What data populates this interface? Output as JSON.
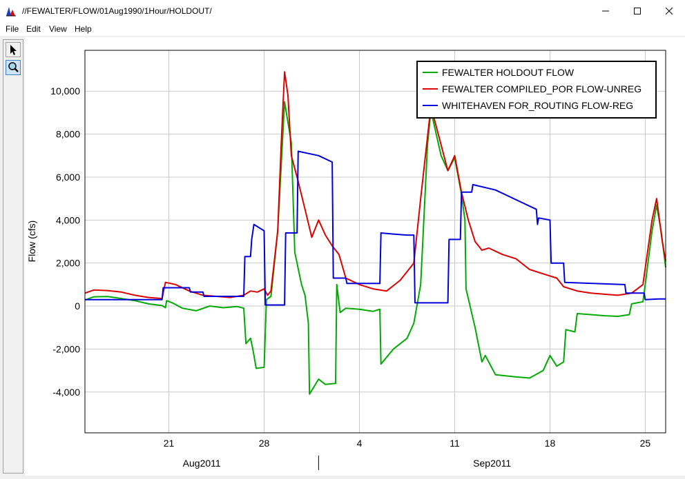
{
  "window": {
    "title": "//FEWALTER/FLOW/01Aug1990/1Hour/HOLDOUT/",
    "icon": "chart-app-icon",
    "controls": [
      "minimize-icon",
      "maximize-icon",
      "close-icon"
    ]
  },
  "menu": {
    "file": "File",
    "edit": "Edit",
    "view": "View",
    "help": "Help"
  },
  "toolbar": {
    "tools": [
      "pointer-icon",
      "zoom-icon"
    ],
    "active": "zoom-icon"
  },
  "chart_data": {
    "type": "line",
    "title": "",
    "ylabel": "Flow (cfs)",
    "xlabel": "",
    "ylim": [
      -5900,
      11900
    ],
    "xlim": [
      "2011-08-14T20:00",
      "2011-09-26T12:00"
    ],
    "grid": true,
    "legend_position": "top-right",
    "yticks": [
      -4000,
      -2000,
      0,
      2000,
      4000,
      6000,
      8000,
      10000
    ],
    "yticklabels": [
      "-4,000",
      "-2,000",
      "0",
      "2,000",
      "4,000",
      "6,000",
      "8,000",
      "10,000"
    ],
    "xticks": [
      "2011-08-21",
      "2011-08-28",
      "2011-09-04",
      "2011-09-11",
      "2011-09-18",
      "2011-09-25"
    ],
    "xticklabels": [
      "21",
      "28",
      "4",
      "11",
      "18",
      "25"
    ],
    "period_labels": [
      "Aug2011",
      "Sep2011"
    ],
    "period_divider": "2011-09-01",
    "series": [
      {
        "name": "FEWALTER HOLDOUT FLOW",
        "color": "#00aa00",
        "points": [
          [
            "2011-08-14T20:00",
            280
          ],
          [
            "2011-08-15T12:00",
            430
          ],
          [
            "2011-08-16T12:00",
            440
          ],
          [
            "2011-08-17T12:00",
            350
          ],
          [
            "2011-08-18T12:00",
            250
          ],
          [
            "2011-08-19T12:00",
            100
          ],
          [
            "2011-08-20T12:00",
            20
          ],
          [
            "2011-08-20T18:00",
            -80
          ],
          [
            "2011-08-20T20:00",
            250
          ],
          [
            "2011-08-21T06:00",
            150
          ],
          [
            "2011-08-22T00:00",
            -100
          ],
          [
            "2011-08-23T00:00",
            -220
          ],
          [
            "2011-08-24T00:00",
            0
          ],
          [
            "2011-08-25T00:00",
            -80
          ],
          [
            "2011-08-26T00:00",
            -20
          ],
          [
            "2011-08-26T12:00",
            -100
          ],
          [
            "2011-08-26T16:00",
            -1750
          ],
          [
            "2011-08-27T00:00",
            -1500
          ],
          [
            "2011-08-27T04:00",
            -2000
          ],
          [
            "2011-08-27T10:00",
            -2900
          ],
          [
            "2011-08-28T00:00",
            -2850
          ],
          [
            "2011-08-28T04:00",
            300
          ],
          [
            "2011-08-28T12:00",
            450
          ],
          [
            "2011-08-29T00:00",
            3500
          ],
          [
            "2011-08-29T12:00",
            9500
          ],
          [
            "2011-08-30T00:00",
            7600
          ],
          [
            "2011-08-30T06:00",
            2500
          ],
          [
            "2011-08-30T18:00",
            1000
          ],
          [
            "2011-08-31T00:00",
            500
          ],
          [
            "2011-08-31T06:00",
            -800
          ],
          [
            "2011-08-31T08:00",
            -4100
          ],
          [
            "2011-09-01T00:00",
            -3400
          ],
          [
            "2011-09-01T12:00",
            -3650
          ],
          [
            "2011-09-02T06:00",
            -3600
          ],
          [
            "2011-09-02T08:00",
            1000
          ],
          [
            "2011-09-02T14:00",
            -300
          ],
          [
            "2011-09-03T00:00",
            -100
          ],
          [
            "2011-09-04T00:00",
            -150
          ],
          [
            "2011-09-05T00:00",
            -250
          ],
          [
            "2011-09-05T12:00",
            -150
          ],
          [
            "2011-09-05T14:00",
            -2700
          ],
          [
            "2011-09-06T12:00",
            -2000
          ],
          [
            "2011-09-07T12:00",
            -1500
          ],
          [
            "2011-09-08T00:00",
            -800
          ],
          [
            "2011-09-08T12:00",
            1000
          ],
          [
            "2011-09-09T00:00",
            7500
          ],
          [
            "2011-09-09T06:00",
            9100
          ],
          [
            "2011-09-10T00:00",
            7000
          ],
          [
            "2011-09-10T12:00",
            6300
          ],
          [
            "2011-09-11T00:00",
            6900
          ],
          [
            "2011-09-11T12:00",
            5200
          ],
          [
            "2011-09-11T18:00",
            4000
          ],
          [
            "2011-09-11T20:00",
            800
          ],
          [
            "2011-09-12T12:00",
            -1000
          ],
          [
            "2011-09-13T00:00",
            -2600
          ],
          [
            "2011-09-13T06:00",
            -2300
          ],
          [
            "2011-09-14T00:00",
            -3200
          ],
          [
            "2011-09-15T12:00",
            -3300
          ],
          [
            "2011-09-16T12:00",
            -3350
          ],
          [
            "2011-09-17T12:00",
            -3000
          ],
          [
            "2011-09-18T00:00",
            -2300
          ],
          [
            "2011-09-18T12:00",
            -2800
          ],
          [
            "2011-09-19T00:00",
            -2600
          ],
          [
            "2011-09-19T04:00",
            -1100
          ],
          [
            "2011-09-19T20:00",
            -1200
          ],
          [
            "2011-09-20T00:00",
            -350
          ],
          [
            "2011-09-21T00:00",
            -400
          ],
          [
            "2011-09-22T00:00",
            -450
          ],
          [
            "2011-09-23T00:00",
            -480
          ],
          [
            "2011-09-23T20:00",
            -400
          ],
          [
            "2011-09-24T00:00",
            100
          ],
          [
            "2011-09-24T20:00",
            200
          ],
          [
            "2011-09-25T00:00",
            1000
          ],
          [
            "2011-09-25T12:00",
            3500
          ],
          [
            "2011-09-25T20:00",
            4700
          ],
          [
            "2011-09-26T04:00",
            3500
          ],
          [
            "2011-09-26T12:00",
            1800
          ]
        ]
      },
      {
        "name": "FEWALTER COMPILED_POR FLOW-UNREG",
        "color": "#dd0000",
        "points": [
          [
            "2011-08-14T20:00",
            600
          ],
          [
            "2011-08-15T12:00",
            750
          ],
          [
            "2011-08-16T12:00",
            720
          ],
          [
            "2011-08-17T12:00",
            650
          ],
          [
            "2011-08-18T12:00",
            500
          ],
          [
            "2011-08-19T12:00",
            400
          ],
          [
            "2011-08-20T12:00",
            350
          ],
          [
            "2011-08-20T18:00",
            1100
          ],
          [
            "2011-08-21T12:00",
            1000
          ],
          [
            "2011-08-22T12:00",
            700
          ],
          [
            "2011-08-23T12:00",
            500
          ],
          [
            "2011-08-24T12:00",
            450
          ],
          [
            "2011-08-25T12:00",
            400
          ],
          [
            "2011-08-26T12:00",
            500
          ],
          [
            "2011-08-27T00:00",
            700
          ],
          [
            "2011-08-27T12:00",
            650
          ],
          [
            "2011-08-28T00:00",
            800
          ],
          [
            "2011-08-28T06:00",
            500
          ],
          [
            "2011-08-28T12:00",
            700
          ],
          [
            "2011-08-29T00:00",
            3500
          ],
          [
            "2011-08-29T06:00",
            7500
          ],
          [
            "2011-08-29T12:00",
            10900
          ],
          [
            "2011-08-29T18:00",
            9800
          ],
          [
            "2011-08-30T00:00",
            7000
          ],
          [
            "2011-08-30T12:00",
            5800
          ],
          [
            "2011-08-31T00:00",
            4500
          ],
          [
            "2011-08-31T12:00",
            3200
          ],
          [
            "2011-09-01T00:00",
            4000
          ],
          [
            "2011-09-01T12:00",
            3300
          ],
          [
            "2011-09-02T00:00",
            2800
          ],
          [
            "2011-09-02T12:00",
            2400
          ],
          [
            "2011-09-03T00:00",
            1300
          ],
          [
            "2011-09-04T00:00",
            1000
          ],
          [
            "2011-09-05T00:00",
            800
          ],
          [
            "2011-09-06T00:00",
            700
          ],
          [
            "2011-09-07T00:00",
            1200
          ],
          [
            "2011-09-08T00:00",
            2000
          ],
          [
            "2011-09-08T12:00",
            5000
          ],
          [
            "2011-09-09T06:00",
            9300
          ],
          [
            "2011-09-10T00:00",
            7500
          ],
          [
            "2011-09-10T12:00",
            6300
          ],
          [
            "2011-09-11T00:00",
            7000
          ],
          [
            "2011-09-11T12:00",
            5300
          ],
          [
            "2011-09-12T00:00",
            4000
          ],
          [
            "2011-09-12T12:00",
            3000
          ],
          [
            "2011-09-13T00:00",
            2600
          ],
          [
            "2011-09-13T12:00",
            2700
          ],
          [
            "2011-09-14T12:00",
            2400
          ],
          [
            "2011-09-15T12:00",
            2200
          ],
          [
            "2011-09-16T12:00",
            1700
          ],
          [
            "2011-09-17T12:00",
            1500
          ],
          [
            "2011-09-18T12:00",
            1300
          ],
          [
            "2011-09-19T00:00",
            900
          ],
          [
            "2011-09-20T00:00",
            700
          ],
          [
            "2011-09-21T00:00",
            600
          ],
          [
            "2011-09-22T00:00",
            550
          ],
          [
            "2011-09-23T00:00",
            500
          ],
          [
            "2011-09-24T00:00",
            600
          ],
          [
            "2011-09-24T20:00",
            1000
          ],
          [
            "2011-09-25T12:00",
            4000
          ],
          [
            "2011-09-25T20:00",
            5000
          ],
          [
            "2011-09-26T06:00",
            3000
          ],
          [
            "2011-09-26T12:00",
            2100
          ]
        ]
      },
      {
        "name": "WHITEHAVEN FOR_ROUTING FLOW-REG",
        "color": "#0000dd",
        "points": [
          [
            "2011-08-14T20:00",
            300
          ],
          [
            "2011-08-20T12:00",
            300
          ],
          [
            "2011-08-20T14:00",
            850
          ],
          [
            "2011-08-22T12:00",
            850
          ],
          [
            "2011-08-22T14:00",
            650
          ],
          [
            "2011-08-23T12:00",
            650
          ],
          [
            "2011-08-23T14:00",
            450
          ],
          [
            "2011-08-26T12:00",
            450
          ],
          [
            "2011-08-26T14:00",
            2300
          ],
          [
            "2011-08-27T00:00",
            2300
          ],
          [
            "2011-08-27T02:00",
            3100
          ],
          [
            "2011-08-27T06:00",
            3800
          ],
          [
            "2011-08-28T00:00",
            3500
          ],
          [
            "2011-08-28T02:00",
            50
          ],
          [
            "2011-08-29T12:00",
            50
          ],
          [
            "2011-08-29T14:00",
            3400
          ],
          [
            "2011-08-30T10:00",
            3400
          ],
          [
            "2011-08-30T12:00",
            7200
          ],
          [
            "2011-09-01T00:00",
            7000
          ],
          [
            "2011-09-02T00:00",
            6700
          ],
          [
            "2011-09-02T02:00",
            1300
          ],
          [
            "2011-09-03T00:00",
            1300
          ],
          [
            "2011-09-03T02:00",
            1050
          ],
          [
            "2011-09-05T12:00",
            1050
          ],
          [
            "2011-09-05T14:00",
            3400
          ],
          [
            "2011-09-06T12:00",
            3350
          ],
          [
            "2011-09-07T12:00",
            3300
          ],
          [
            "2011-09-08T00:00",
            3300
          ],
          [
            "2011-09-08T02:00",
            150
          ],
          [
            "2011-09-10T12:00",
            150
          ],
          [
            "2011-09-10T14:00",
            3100
          ],
          [
            "2011-09-11T10:00",
            3100
          ],
          [
            "2011-09-11T12:00",
            5300
          ],
          [
            "2011-09-12T06:00",
            5300
          ],
          [
            "2011-09-12T08:00",
            5650
          ],
          [
            "2011-09-14T00:00",
            5400
          ],
          [
            "2011-09-16T00:00",
            4800
          ],
          [
            "2011-09-17T00:00",
            4500
          ],
          [
            "2011-09-17T02:00",
            3800
          ],
          [
            "2011-09-17T04:00",
            4100
          ],
          [
            "2011-09-18T00:00",
            4000
          ],
          [
            "2011-09-18T02:00",
            2000
          ],
          [
            "2011-09-19T00:00",
            2000
          ],
          [
            "2011-09-19T02:00",
            1100
          ],
          [
            "2011-09-23T12:00",
            1000
          ],
          [
            "2011-09-23T14:00",
            600
          ],
          [
            "2011-09-24T22:00",
            600
          ],
          [
            "2011-09-25T00:00",
            300
          ],
          [
            "2011-09-26T00:00",
            330
          ],
          [
            "2011-09-26T12:00",
            330
          ]
        ]
      }
    ]
  }
}
